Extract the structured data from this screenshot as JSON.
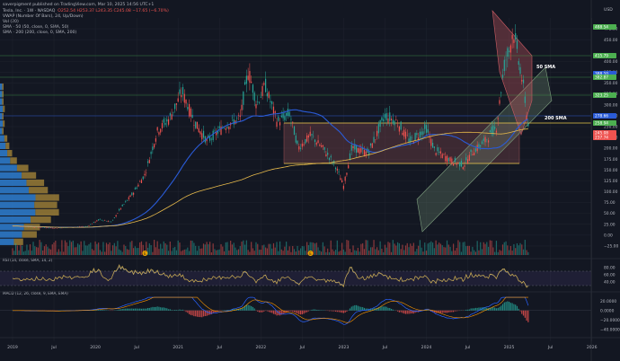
{
  "header": {
    "published": "saverpigment published on TradingView.com, Mar 10, 2025 14:56 UTC+1",
    "symbol_line": "Tesla, Inc. · 1W · NASDAQ",
    "ohlc": "O252.54 H253.37 L243.35 C245.08 −17.65 (−6.70%)",
    "vwap": "VWAP (Number Of Bars), 24, Up/Down)",
    "vol": "Vol (20)",
    "sma50": "SMA · 50 (50, close, 0, SMA, 50)",
    "sma200": "SMA · 200 (200, close, 0, SMA, 200)",
    "currency": "USD"
  },
  "colors": {
    "bg": "#131722",
    "up": "#26a69a",
    "down": "#ef5350",
    "sma50": "#2a5bd7",
    "sma200": "#e6b94b",
    "vp_blue": "#2f7fd1",
    "vp_gold": "#b5923a",
    "channel": "#7f9f7f",
    "zone": "#8a4a4f",
    "wedge": "#c85a62",
    "rsi": "#c8a74a",
    "macd": "#2962ff",
    "signal": "#ff9800"
  },
  "annotations": {
    "sma50_label": "50 SMA",
    "sma200_label": "200 SMA"
  },
  "markers": [
    "E",
    "E"
  ],
  "chart_data": [
    {
      "type": "line",
      "name": "price",
      "x": [
        "2019-01",
        "2019-07",
        "2020-01",
        "2020-07",
        "2021-01",
        "2021-07",
        "2022-01",
        "2022-07",
        "2023-01",
        "2023-07",
        "2024-01",
        "2024-07",
        "2025-01",
        "2025-03"
      ],
      "y": [
        21,
        16,
        28,
        110,
        280,
        250,
        360,
        270,
        123,
        275,
        210,
        220,
        410,
        245
      ],
      "ylim": [
        -50,
        500
      ],
      "y_ticks": [
        "475.00",
        "450.00",
        "400.00",
        "375.00",
        "350.00",
        "325.00",
        "300.00",
        "275.00",
        "250.00",
        "225.00",
        "200.00",
        "175.00",
        "150.00",
        "125.00",
        "100.00",
        "75.00",
        "50.00",
        "25.00",
        "0.00",
        "−25.00"
      ],
      "x_ticks": [
        "2019",
        "Jul",
        "2020",
        "Jul",
        "2021",
        "Jul",
        "2022",
        "Jul",
        "2023",
        "Jul",
        "2024",
        "Jul",
        "2025",
        "Jul",
        "2026"
      ],
      "price_labels": [
        {
          "text": "488.54",
          "color": "#4caf50"
        },
        {
          "text": "415.79",
          "color": "#4caf50"
        },
        {
          "text": "388.10",
          "color": "#2a5bd7"
        },
        {
          "text": "382.87",
          "color": "#4caf50"
        },
        {
          "text": "323.25",
          "color": "#4caf50"
        },
        {
          "text": "278.66",
          "color": "#2a5bd7"
        },
        {
          "text": "258.94",
          "color": "#4caf50"
        },
        {
          "text": "245.08",
          "color": "#ef5350"
        },
        {
          "text": "237.74",
          "color": "#ef5350"
        }
      ]
    },
    {
      "type": "line",
      "name": "RSI",
      "header": "RSI (14, close, SMA, 14, 2)",
      "y_ticks": [
        "80.00",
        "60.00",
        "40.00"
      ],
      "ylim": [
        20,
        90
      ]
    },
    {
      "type": "bar",
      "name": "MACD",
      "header": "MACD (12, 26, close, 9, EMA, EMA)",
      "y_ticks": [
        "20.0000",
        "0.0000",
        "−20.0000",
        "−40.0000"
      ],
      "ylim": [
        -50,
        30
      ]
    }
  ]
}
